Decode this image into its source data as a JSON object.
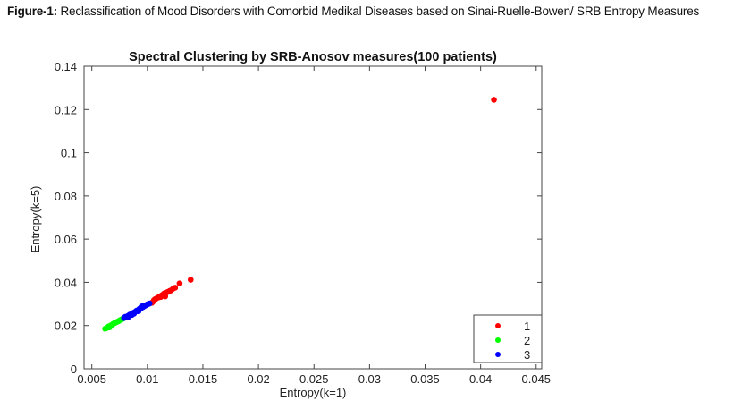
{
  "caption": {
    "label": "Figure-1:",
    "text": " Reclassification of Mood Disorders with Comorbid Medikal Diseases based on Sinai-Ruelle-Bowen/ SRB Entropy Measures"
  },
  "chart_data": {
    "type": "scatter",
    "title": "Spectral Clustering by SRB-Anosov measures(100 patients)",
    "xlabel": "Entropy(k=1)",
    "ylabel": "Entropy(k=5)",
    "xlim": [
      0.0043,
      0.0455
    ],
    "ylim": [
      0,
      0.14
    ],
    "xticks": [
      "0.005",
      "0.01",
      "0.015",
      "0.02",
      "0.025",
      "0.03",
      "0.035",
      "0.04",
      "0.045"
    ],
    "xtick_values": [
      0.005,
      0.01,
      0.015,
      0.02,
      0.025,
      0.03,
      0.035,
      0.04,
      0.045
    ],
    "yticks": [
      "0",
      "0.02",
      "0.04",
      "0.06",
      "0.08",
      "0.1",
      "0.12",
      "0.14"
    ],
    "ytick_values": [
      0,
      0.02,
      0.04,
      0.06,
      0.08,
      0.1,
      0.12,
      0.14
    ],
    "grid": false,
    "legend_position": "bottom-right",
    "series": [
      {
        "name": "1",
        "color": "#ff0000",
        "x": [
          0.0104,
          0.0105,
          0.0106,
          0.0107,
          0.0108,
          0.011,
          0.0111,
          0.0112,
          0.0113,
          0.0114,
          0.0115,
          0.0116,
          0.0117,
          0.0118,
          0.012,
          0.0121,
          0.0123,
          0.0125,
          0.0129,
          0.0139,
          0.0412
        ],
        "y": [
          0.0305,
          0.031,
          0.0318,
          0.0322,
          0.0325,
          0.033,
          0.0335,
          0.0332,
          0.034,
          0.0343,
          0.0348,
          0.0335,
          0.0352,
          0.0355,
          0.036,
          0.0362,
          0.037,
          0.0375,
          0.0395,
          0.0412,
          0.1245
        ]
      },
      {
        "name": "2",
        "color": "#00ff00",
        "x": [
          0.0062,
          0.0064,
          0.0065,
          0.0066,
          0.0067,
          0.0068,
          0.0069,
          0.007,
          0.0071,
          0.0072,
          0.0073,
          0.0074,
          0.0075,
          0.0076,
          0.0077,
          0.0078
        ],
        "y": [
          0.0185,
          0.019,
          0.0196,
          0.0192,
          0.02,
          0.0203,
          0.0207,
          0.021,
          0.0213,
          0.0215,
          0.0218,
          0.022,
          0.0224,
          0.0226,
          0.0229,
          0.0232
        ]
      },
      {
        "name": "3",
        "color": "#0000ff",
        "x": [
          0.0079,
          0.008,
          0.0081,
          0.0082,
          0.0083,
          0.0084,
          0.0085,
          0.0086,
          0.0087,
          0.0088,
          0.0089,
          0.009,
          0.0091,
          0.0092,
          0.0093,
          0.0094,
          0.0095,
          0.0096,
          0.0097,
          0.0098,
          0.0099,
          0.01,
          0.0101,
          0.0102,
          0.0083,
          0.0088,
          0.0092,
          0.0096
        ],
        "y": [
          0.0235,
          0.024,
          0.0238,
          0.0243,
          0.0245,
          0.025,
          0.0252,
          0.0249,
          0.0258,
          0.026,
          0.0263,
          0.0268,
          0.027,
          0.0272,
          0.0278,
          0.028,
          0.0283,
          0.0285,
          0.029,
          0.0292,
          0.0295,
          0.0298,
          0.03,
          0.0302,
          0.024,
          0.0255,
          0.0266,
          0.0292
        ]
      }
    ]
  }
}
